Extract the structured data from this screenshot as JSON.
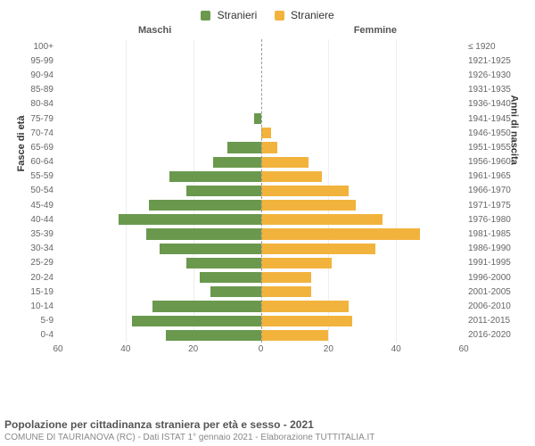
{
  "chart": {
    "type": "population-pyramid",
    "background_color": "#ffffff",
    "grid_color": "#eeeeee",
    "center_line_color": "#999999",
    "bar_gap": 2,
    "legend": {
      "male": {
        "label": "Stranieri",
        "color": "#6a994e"
      },
      "female": {
        "label": "Straniere",
        "color": "#f2b33d"
      }
    },
    "top_labels": {
      "left": "Maschi",
      "right": "Femmine"
    },
    "yaxis_left_title": "Fasce di età",
    "yaxis_right_title": "Anni di nascita",
    "xaxis": {
      "max": 60,
      "ticks": [
        60,
        40,
        20,
        0,
        20,
        40,
        60
      ]
    },
    "rows": [
      {
        "age": "100+",
        "birth": "≤ 1920",
        "m": 0,
        "f": 0
      },
      {
        "age": "95-99",
        "birth": "1921-1925",
        "m": 0,
        "f": 0
      },
      {
        "age": "90-94",
        "birth": "1926-1930",
        "m": 0,
        "f": 0
      },
      {
        "age": "85-89",
        "birth": "1931-1935",
        "m": 0,
        "f": 0
      },
      {
        "age": "80-84",
        "birth": "1936-1940",
        "m": 0,
        "f": 0
      },
      {
        "age": "75-79",
        "birth": "1941-1945",
        "m": 2,
        "f": 0
      },
      {
        "age": "70-74",
        "birth": "1946-1950",
        "m": 0,
        "f": 3
      },
      {
        "age": "65-69",
        "birth": "1951-1955",
        "m": 10,
        "f": 5
      },
      {
        "age": "60-64",
        "birth": "1956-1960",
        "m": 14,
        "f": 14
      },
      {
        "age": "55-59",
        "birth": "1961-1965",
        "m": 27,
        "f": 18
      },
      {
        "age": "50-54",
        "birth": "1966-1970",
        "m": 22,
        "f": 26
      },
      {
        "age": "45-49",
        "birth": "1971-1975",
        "m": 33,
        "f": 28
      },
      {
        "age": "40-44",
        "birth": "1976-1980",
        "m": 42,
        "f": 36
      },
      {
        "age": "35-39",
        "birth": "1981-1985",
        "m": 34,
        "f": 47
      },
      {
        "age": "30-34",
        "birth": "1986-1990",
        "m": 30,
        "f": 34
      },
      {
        "age": "25-29",
        "birth": "1991-1995",
        "m": 22,
        "f": 21
      },
      {
        "age": "20-24",
        "birth": "1996-2000",
        "m": 18,
        "f": 15
      },
      {
        "age": "15-19",
        "birth": "2001-2005",
        "m": 15,
        "f": 15
      },
      {
        "age": "10-14",
        "birth": "2006-2010",
        "m": 32,
        "f": 26
      },
      {
        "age": "5-9",
        "birth": "2011-2015",
        "m": 38,
        "f": 27
      },
      {
        "age": "0-4",
        "birth": "2016-2020",
        "m": 28,
        "f": 20
      }
    ]
  },
  "caption": {
    "title": "Popolazione per cittadinanza straniera per età e sesso - 2021",
    "sub": "COMUNE DI TAURIANOVA (RC) - Dati ISTAT 1° gennaio 2021 - Elaborazione TUTTITALIA.IT"
  }
}
